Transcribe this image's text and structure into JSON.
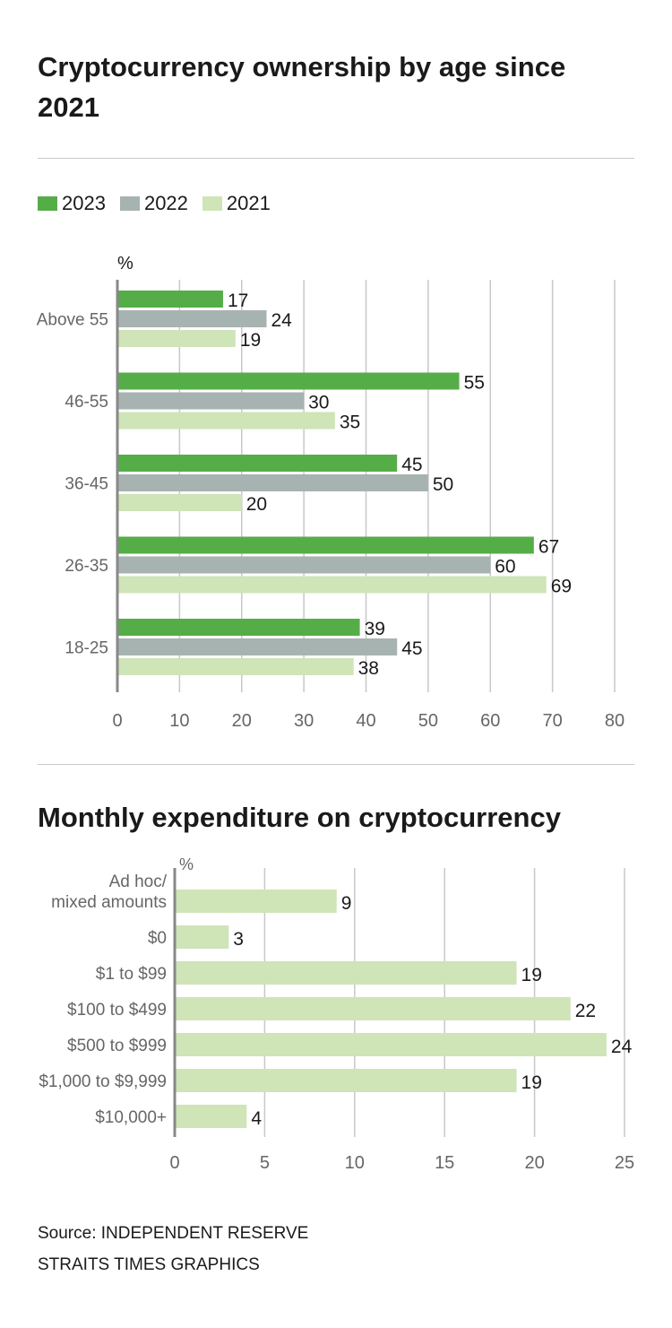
{
  "colors": {
    "c2023": "#55ad48",
    "c2022": "#a7b3b0",
    "c2021": "#cfe4b7",
    "grid": "#c8c8c8",
    "axis": "#888888",
    "label": "#666666",
    "value": "#1a1a1a"
  },
  "chart_data": [
    {
      "type": "bar",
      "orientation": "horizontal",
      "title": "Cryptocurrency ownership by age since 2021",
      "unit_label": "%",
      "categories": [
        "Above 55",
        "46-55",
        "36-45",
        "26-35",
        "18-25"
      ],
      "series": [
        {
          "name": "2023",
          "color": "#55ad48",
          "values": [
            17,
            55,
            45,
            67,
            39
          ]
        },
        {
          "name": "2022",
          "color": "#a7b3b0",
          "values": [
            24,
            30,
            50,
            60,
            45
          ]
        },
        {
          "name": "2021",
          "color": "#cfe4b7",
          "values": [
            19,
            35,
            20,
            69,
            38
          ]
        }
      ],
      "xlim": [
        0,
        80
      ],
      "xticks": [
        "0",
        "10",
        "20",
        "30",
        "40",
        "50",
        "60",
        "70",
        "80"
      ],
      "grid": true,
      "legend": "top-left"
    },
    {
      "type": "bar",
      "orientation": "horizontal",
      "title": "Monthly expenditure on cryptocurrency",
      "unit_label": "%",
      "categories": [
        [
          "Ad hoc/",
          "mixed amounts"
        ],
        [
          "$0"
        ],
        [
          "$1 to $99"
        ],
        [
          "$100 to $499"
        ],
        [
          "$500 to $999"
        ],
        [
          "$1,000 to $9,999"
        ],
        [
          "$10,000+"
        ]
      ],
      "values": [
        9,
        3,
        19,
        22,
        24,
        19,
        4
      ],
      "color": "#cfe4b7",
      "xlim": [
        0,
        25
      ],
      "xticks": [
        "0",
        "5",
        "10",
        "15",
        "20",
        "25"
      ],
      "grid": true
    }
  ],
  "footer": {
    "source": "Source: INDEPENDENT RESERVE",
    "credit": "STRAITS TIMES GRAPHICS"
  }
}
